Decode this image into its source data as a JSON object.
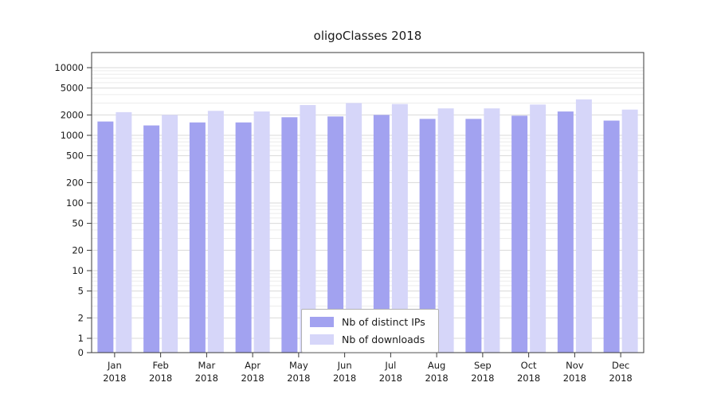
{
  "chart_data": {
    "type": "bar",
    "title": "oligoClasses 2018",
    "categories": [
      "Jan",
      "Feb",
      "Mar",
      "Apr",
      "May",
      "Jun",
      "Jul",
      "Aug",
      "Sep",
      "Oct",
      "Nov",
      "Dec"
    ],
    "year": "2018",
    "series": [
      {
        "name": "Nb of distinct IPs",
        "color": "#a2a2f0",
        "values": [
          1600,
          1400,
          1550,
          1550,
          1850,
          1900,
          2000,
          1750,
          1750,
          1950,
          2250,
          1650
        ]
      },
      {
        "name": "Nb of downloads",
        "color": "#d6d6f9",
        "values": [
          2200,
          2000,
          2300,
          2250,
          2800,
          3000,
          2900,
          2500,
          2500,
          2850,
          3400,
          2400
        ]
      }
    ],
    "xlabel": "",
    "ylabel": "",
    "yscale": "symlog",
    "yticks": [
      0,
      1,
      2,
      5,
      10,
      20,
      50,
      100,
      200,
      500,
      1000,
      2000,
      5000,
      10000
    ],
    "ylim": [
      0,
      10000
    ],
    "grid": true,
    "legend_position": "lower center"
  },
  "colors": {
    "grid_major": "#d9d9d9",
    "grid_minor": "#ececec",
    "spine": "#3a3a3a",
    "text": "#1a1a1a",
    "background": "#ffffff"
  }
}
